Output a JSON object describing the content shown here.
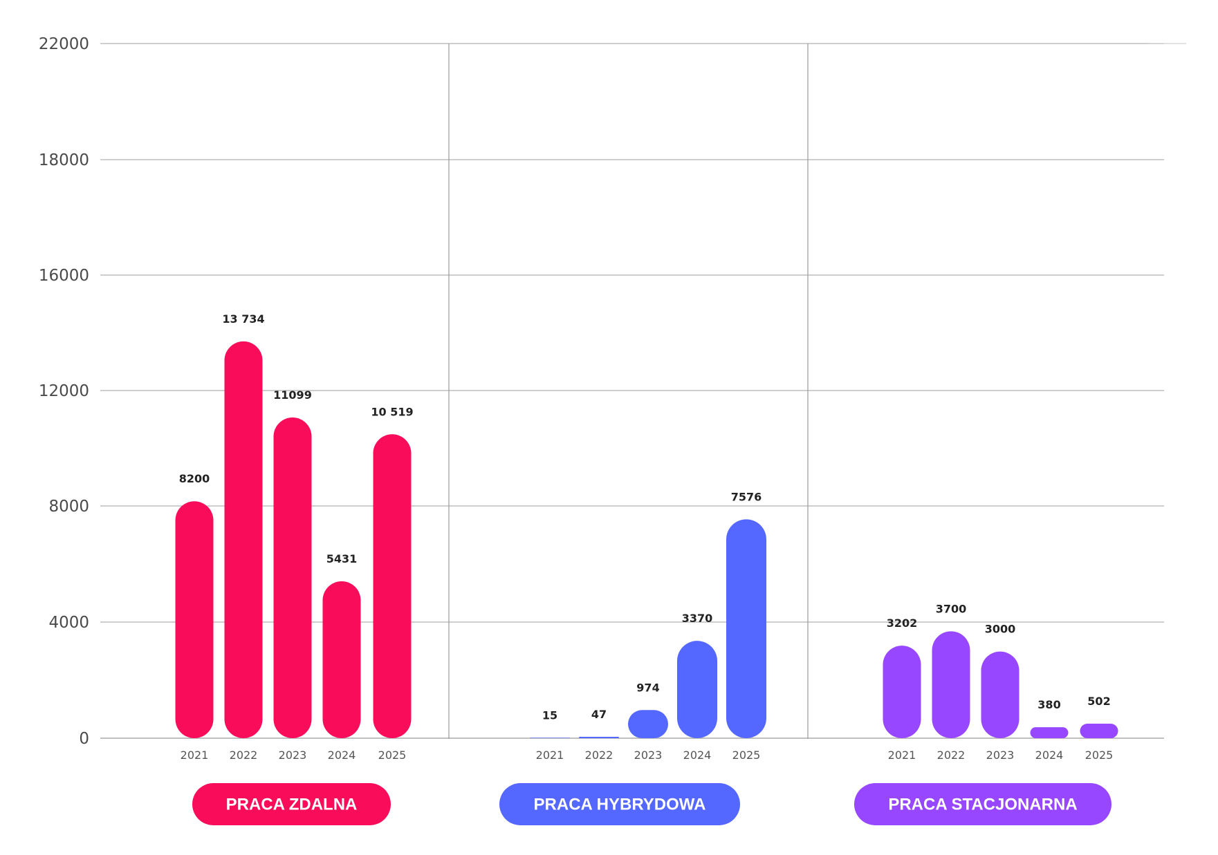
{
  "chart_data": {
    "type": "bar",
    "title": "",
    "xlabel": "",
    "ylabel": "",
    "y_ticks": [
      0,
      4000,
      8000,
      12000,
      16000,
      18000,
      22000
    ],
    "grid": true,
    "groups": [
      {
        "name": "PRACA ZDALNA",
        "color": "#F90C5A",
        "categories": [
          "2021",
          "2022",
          "2023",
          "2024",
          "2025"
        ],
        "values": [
          8200,
          13734,
          11099,
          5431,
          10519
        ],
        "value_labels": [
          "8200",
          "13 734",
          "11099",
          "5431",
          "10 519"
        ]
      },
      {
        "name": "PRACA HYBRYDOWA",
        "color": "#5468FF",
        "categories": [
          "2021",
          "2022",
          "2023",
          "2024",
          "2025"
        ],
        "values": [
          15,
          47,
          974,
          3370,
          7576
        ],
        "value_labels": [
          "15",
          "47",
          "974",
          "3370",
          "7576"
        ]
      },
      {
        "name": "PRACA STACJONARNA",
        "color": "#9747FF",
        "categories": [
          "2021",
          "2022",
          "2023",
          "2024",
          "2025"
        ],
        "values": [
          3202,
          3700,
          3000,
          380,
          502
        ],
        "value_labels": [
          "3202",
          "3700",
          "3000",
          "380",
          "502"
        ]
      }
    ]
  }
}
